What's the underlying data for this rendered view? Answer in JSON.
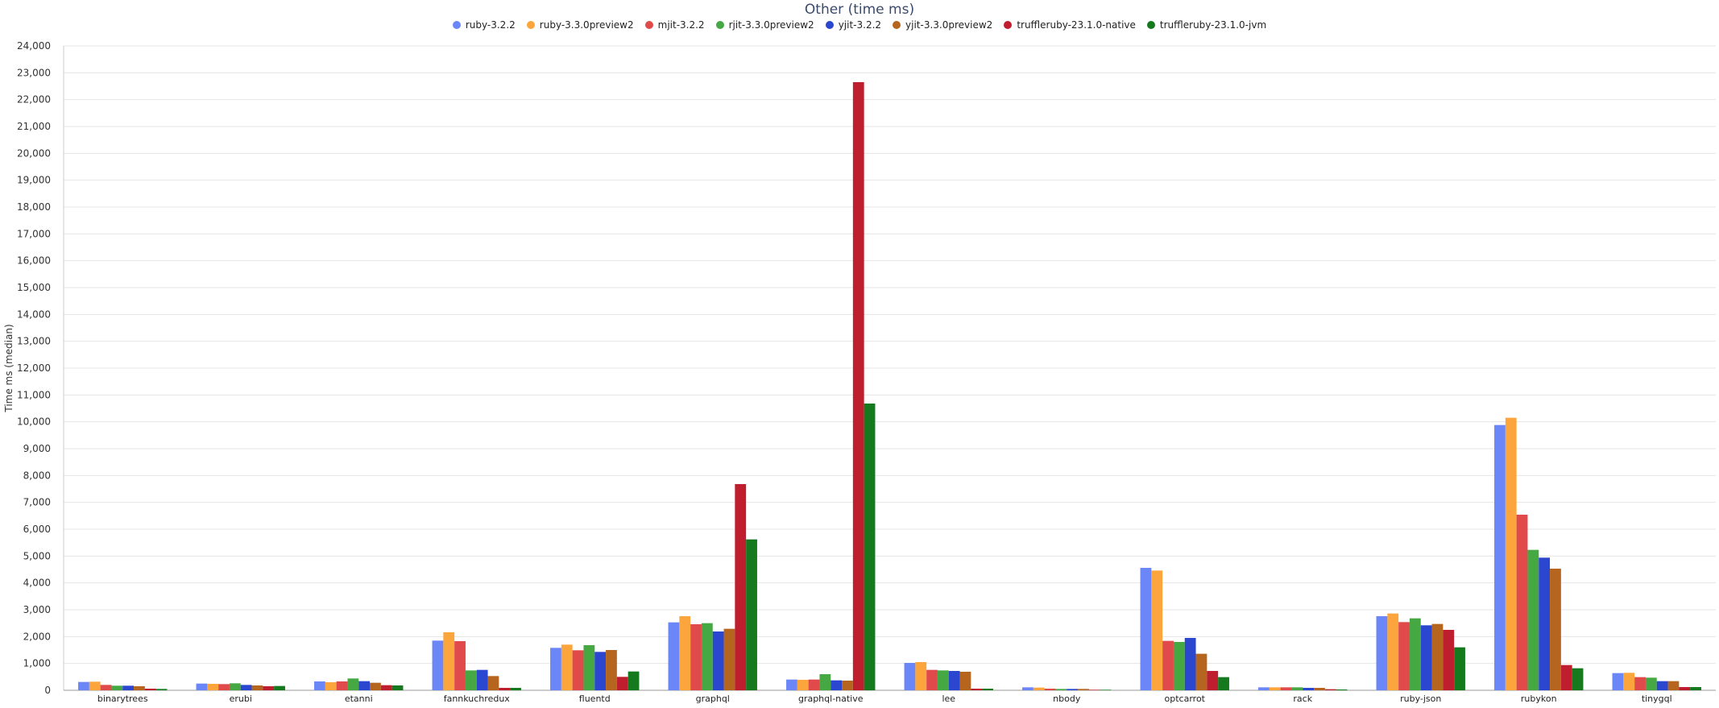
{
  "chart_data": {
    "type": "bar",
    "title": "Other (time ms)",
    "xlabel": "",
    "ylabel": "Time ms (median)",
    "ylim": [
      0,
      24000
    ],
    "ytick_step": 1000,
    "grid": true,
    "legend_position": "top-center",
    "categories": [
      "binarytrees",
      "erubi",
      "etanni",
      "fannkuchredux",
      "fluentd",
      "graphql",
      "graphql-native",
      "lee",
      "nbody",
      "optcarrot",
      "rack",
      "ruby-json",
      "rubykon",
      "tinygql"
    ],
    "series": [
      {
        "name": "ruby-3.2.2",
        "color": "#6b86f7",
        "values": [
          310,
          250,
          330,
          1850,
          1580,
          2530,
          400,
          1020,
          110,
          4560,
          110,
          2760,
          9880,
          640
        ]
      },
      {
        "name": "ruby-3.3.0preview2",
        "color": "#fca53c",
        "values": [
          320,
          240,
          300,
          2160,
          1700,
          2760,
          390,
          1050,
          100,
          4460,
          110,
          2860,
          10150,
          650
        ]
      },
      {
        "name": "mjit-3.2.2",
        "color": "#e04a4a",
        "values": [
          200,
          230,
          330,
          1830,
          1490,
          2460,
          400,
          760,
          60,
          1840,
          110,
          2540,
          6540,
          490
        ]
      },
      {
        "name": "rjit-3.3.0preview2",
        "color": "#45a843",
        "values": [
          170,
          260,
          440,
          740,
          1680,
          2500,
          600,
          740,
          50,
          1800,
          110,
          2680,
          5230,
          470
        ]
      },
      {
        "name": "yjit-3.2.2",
        "color": "#2b46cf",
        "values": [
          170,
          200,
          340,
          760,
          1430,
          2190,
          370,
          720,
          50,
          1950,
          90,
          2420,
          4940,
          340
        ]
      },
      {
        "name": "yjit-3.3.0preview2",
        "color": "#b5651d",
        "values": [
          150,
          180,
          280,
          530,
          1500,
          2290,
          360,
          690,
          50,
          1360,
          90,
          2470,
          4530,
          340
        ]
      },
      {
        "name": "truffleruby-23.1.0-native",
        "color": "#be1e2d",
        "values": [
          60,
          150,
          190,
          90,
          500,
          7680,
          22650,
          60,
          20,
          720,
          40,
          2250,
          940,
          120
        ]
      },
      {
        "name": "truffleruby-23.1.0-jvm",
        "color": "#157a1e",
        "values": [
          50,
          160,
          180,
          90,
          700,
          5620,
          10680,
          60,
          20,
          490,
          30,
          1600,
          820,
          120
        ]
      }
    ]
  }
}
